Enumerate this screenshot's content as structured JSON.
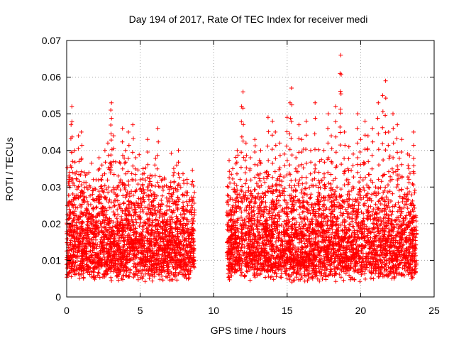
{
  "chart_data": {
    "type": "scatter",
    "title": "Day 194 of 2017, Rate Of TEC Index for receiver medi",
    "xlabel": "GPS time / hours",
    "ylabel": "ROTI / TECUs",
    "xlim": [
      0,
      25
    ],
    "ylim": [
      0,
      0.07
    ],
    "xticks": [
      "0",
      "5",
      "10",
      "15",
      "20",
      "25"
    ],
    "yticks": [
      "0",
      "0.01",
      "0.02",
      "0.03",
      "0.04",
      "0.05",
      "0.06",
      "0.07"
    ],
    "grid": true,
    "marker": "+",
    "color": "#ff0000",
    "data_gap_hours": [
      8.7,
      10.9
    ],
    "points": [
      [
        0.1,
        0.012
      ],
      [
        0.15,
        0.033
      ],
      [
        0.2,
        0.026
      ],
      [
        0.3,
        0.047
      ],
      [
        0.35,
        0.052
      ],
      [
        0.4,
        0.037
      ],
      [
        0.5,
        0.018
      ],
      [
        0.55,
        0.04
      ],
      [
        0.7,
        0.032
      ],
      [
        0.8,
        0.044
      ],
      [
        0.9,
        0.022
      ],
      [
        1.0,
        0.045
      ],
      [
        1.2,
        0.034
      ],
      [
        1.4,
        0.026
      ],
      [
        1.6,
        0.03
      ],
      [
        1.8,
        0.029
      ],
      [
        2.0,
        0.032
      ],
      [
        2.2,
        0.038
      ],
      [
        2.4,
        0.036
      ],
      [
        2.6,
        0.04
      ],
      [
        2.8,
        0.042
      ],
      [
        3.0,
        0.051
      ],
      [
        3.05,
        0.053
      ],
      [
        3.2,
        0.044
      ],
      [
        3.5,
        0.033
      ],
      [
        3.8,
        0.046
      ],
      [
        4.0,
        0.04
      ],
      [
        4.2,
        0.045
      ],
      [
        4.5,
        0.047
      ],
      [
        4.7,
        0.038
      ],
      [
        5.0,
        0.032
      ],
      [
        5.2,
        0.035
      ],
      [
        5.5,
        0.043
      ],
      [
        5.8,
        0.033
      ],
      [
        6.0,
        0.036
      ],
      [
        6.2,
        0.046
      ],
      [
        6.5,
        0.03
      ],
      [
        6.8,
        0.027
      ],
      [
        7.0,
        0.026
      ],
      [
        7.3,
        0.034
      ],
      [
        7.6,
        0.04
      ],
      [
        7.9,
        0.028
      ],
      [
        8.2,
        0.031
      ],
      [
        8.5,
        0.025
      ],
      [
        11.0,
        0.03
      ],
      [
        11.3,
        0.035
      ],
      [
        11.6,
        0.04
      ],
      [
        11.9,
        0.052
      ],
      [
        12.0,
        0.056
      ],
      [
        12.2,
        0.042
      ],
      [
        12.5,
        0.038
      ],
      [
        12.8,
        0.043
      ],
      [
        13.0,
        0.036
      ],
      [
        13.2,
        0.04
      ],
      [
        13.5,
        0.034
      ],
      [
        13.7,
        0.049
      ],
      [
        14.0,
        0.048
      ],
      [
        14.2,
        0.045
      ],
      [
        14.5,
        0.042
      ],
      [
        14.8,
        0.039
      ],
      [
        15.0,
        0.049
      ],
      [
        15.2,
        0.053
      ],
      [
        15.3,
        0.057
      ],
      [
        15.6,
        0.038
      ],
      [
        15.8,
        0.047
      ],
      [
        16.0,
        0.043
      ],
      [
        16.3,
        0.048
      ],
      [
        16.6,
        0.04
      ],
      [
        16.9,
        0.053
      ],
      [
        17.2,
        0.037
      ],
      [
        17.5,
        0.04
      ],
      [
        17.8,
        0.05
      ],
      [
        18.0,
        0.044
      ],
      [
        18.3,
        0.052
      ],
      [
        18.6,
        0.061
      ],
      [
        18.65,
        0.066
      ],
      [
        18.9,
        0.045
      ],
      [
        19.2,
        0.041
      ],
      [
        19.5,
        0.039
      ],
      [
        19.8,
        0.05
      ],
      [
        20.0,
        0.043
      ],
      [
        20.3,
        0.048
      ],
      [
        20.5,
        0.044
      ],
      [
        20.8,
        0.046
      ],
      [
        21.2,
        0.053
      ],
      [
        21.5,
        0.055
      ],
      [
        21.7,
        0.059
      ],
      [
        21.9,
        0.045
      ],
      [
        22.2,
        0.05
      ],
      [
        22.5,
        0.047
      ],
      [
        22.8,
        0.043
      ],
      [
        23.2,
        0.039
      ],
      [
        23.6,
        0.045
      ]
    ]
  }
}
